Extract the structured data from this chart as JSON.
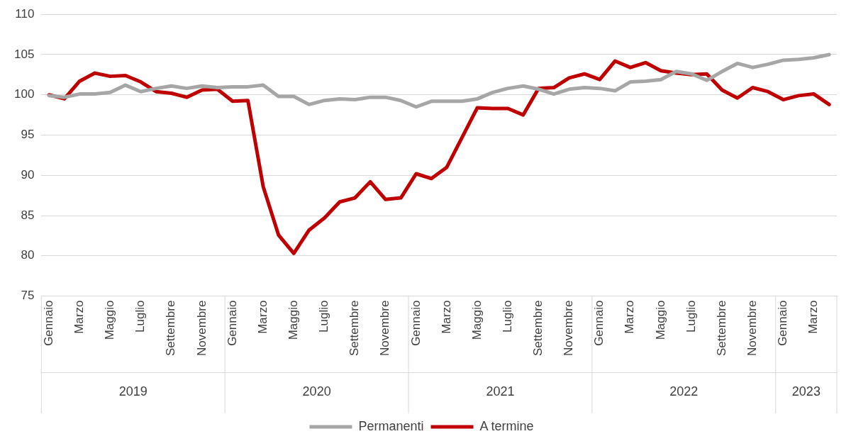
{
  "chart_data": {
    "type": "line",
    "categories": [
      "Gennaio",
      null,
      "Marzo",
      null,
      "Maggio",
      null,
      "Luglio",
      null,
      "Settembre",
      null,
      "Novembre",
      null,
      "Gennaio",
      null,
      "Marzo",
      null,
      "Maggio",
      null,
      "Luglio",
      null,
      "Settembre",
      null,
      "Novembre",
      null,
      "Gennaio",
      null,
      "Marzo",
      null,
      "Maggio",
      null,
      "Luglio",
      null,
      "Settembre",
      null,
      "Novembre",
      null,
      "Gennaio",
      null,
      "Marzo",
      null,
      "Maggio",
      null,
      "Luglio",
      null,
      "Settembre",
      null,
      "Novembre",
      null,
      "Gennaio",
      null,
      "Marzo",
      null
    ],
    "series": [
      {
        "name": "Permanenti",
        "color": "#a6a6a6",
        "values": [
          99.9,
          99.7,
          100.1,
          100.1,
          100.3,
          101.2,
          100.4,
          100.8,
          101.1,
          100.8,
          101.1,
          100.9,
          101.0,
          101.0,
          101.2,
          99.8,
          99.8,
          98.8,
          99.3,
          99.5,
          99.4,
          99.7,
          99.7,
          99.3,
          98.5,
          99.2,
          99.2,
          99.2,
          99.5,
          100.3,
          100.8,
          101.1,
          100.7,
          100.1,
          100.7,
          100.9,
          100.8,
          100.5,
          101.6,
          101.7,
          101.9,
          102.9,
          102.6,
          101.8,
          102.9,
          103.9,
          103.4,
          103.8,
          104.3,
          104.4,
          104.6,
          105.0
        ]
      },
      {
        "name": "A termine",
        "color": "#c00000",
        "values": [
          100.0,
          99.5,
          101.7,
          102.7,
          102.3,
          102.4,
          101.6,
          100.4,
          100.2,
          99.7,
          100.6,
          100.7,
          99.2,
          99.3,
          88.6,
          82.6,
          80.3,
          83.2,
          84.7,
          86.7,
          87.2,
          89.2,
          87.0,
          87.2,
          90.2,
          89.6,
          91.0,
          94.7,
          98.4,
          98.3,
          98.3,
          97.5,
          100.8,
          100.9,
          102.1,
          102.6,
          101.9,
          104.2,
          103.4,
          104.0,
          103.0,
          102.7,
          102.5,
          102.6,
          100.6,
          99.6,
          100.9,
          100.4,
          99.4,
          99.9,
          100.1,
          98.8
        ]
      }
    ],
    "ylim": [
      75,
      110
    ],
    "yticks": [
      75,
      80,
      85,
      90,
      95,
      100,
      105,
      110
    ],
    "grid": "y",
    "legend": "bottom",
    "marker": "none",
    "line_style": "solid",
    "annotations": [
      "2019",
      "2020",
      "2021",
      "2022",
      "2023"
    ]
  }
}
